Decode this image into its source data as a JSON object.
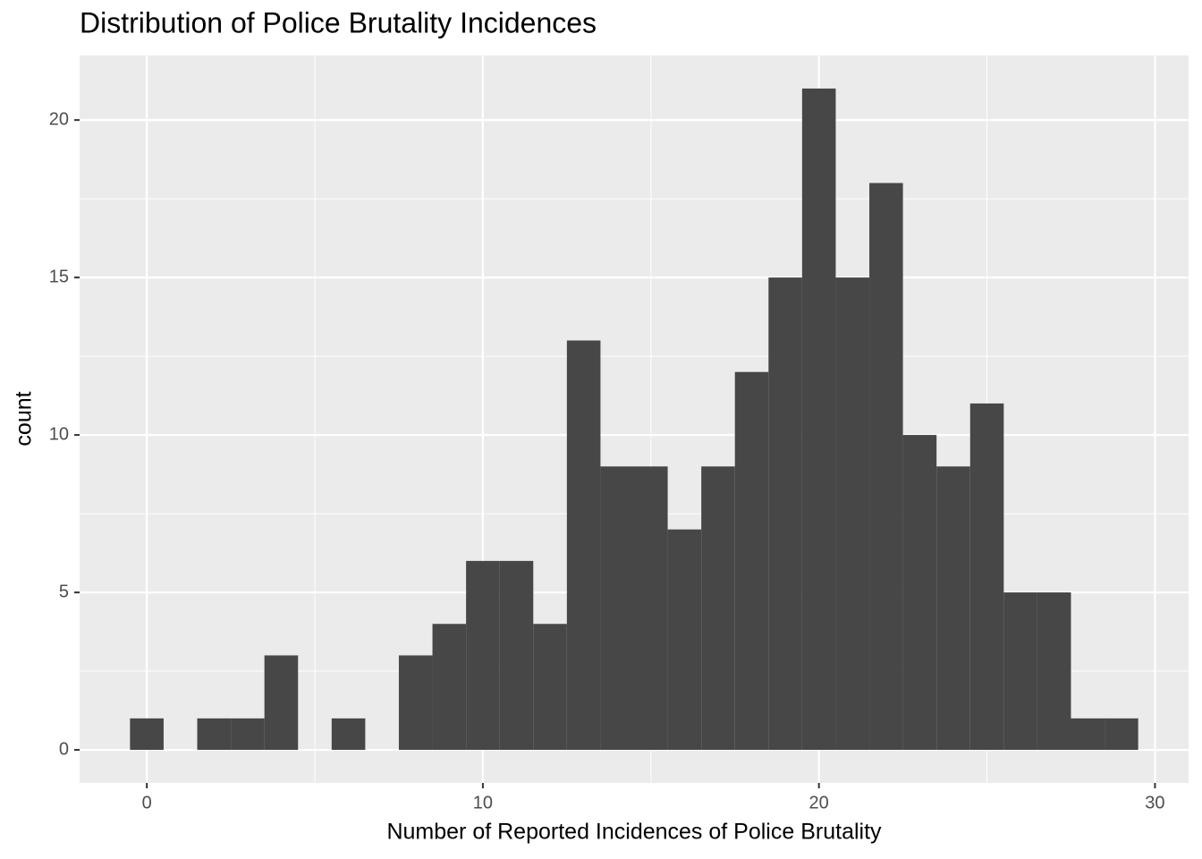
{
  "chart_data": {
    "type": "histogram",
    "title": "Distribution of Police Brutality Incidences",
    "x_label": "Number of Reported Incidences of Police Brutality",
    "y_label": "count",
    "bins": [
      -0.5,
      0.5,
      1.5,
      2.5,
      3.5,
      4.5,
      5.5,
      6.5,
      7.5,
      8.5,
      9.5,
      10.5,
      11.5,
      12.5,
      13.5,
      14.5,
      15.5,
      16.5,
      17.5,
      18.5,
      19.5,
      20.5,
      21.5,
      22.5,
      23.5,
      24.5,
      25.5,
      26.5,
      27.5,
      28.5,
      29.5
    ],
    "values": [
      1,
      0,
      1,
      1,
      3,
      0,
      1,
      0,
      3,
      4,
      6,
      6,
      4,
      13,
      9,
      9,
      7,
      9,
      12,
      15,
      21,
      15,
      18,
      10,
      9,
      11,
      5,
      5,
      1,
      1
    ],
    "color": "#474747",
    "xlim": [
      -2,
      31
    ],
    "ylim": [
      -1.05,
      22.05
    ],
    "xticks": [
      0,
      10,
      20,
      30
    ],
    "yticks": [
      0,
      5,
      10,
      15,
      20
    ],
    "xminor": [
      5,
      15,
      25
    ],
    "yminor": [
      2.5,
      7.5,
      12.5,
      17.5
    ],
    "grid": true
  }
}
